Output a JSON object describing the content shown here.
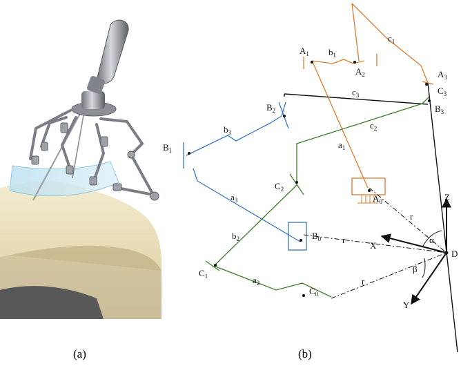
{
  "figure": {
    "panel_a_caption": "(a)",
    "panel_b_caption": "(b)"
  },
  "colors": {
    "chain_a": "#e07a2e",
    "chain_b": "#3a76c4",
    "chain_c": "#3e7d2a",
    "frame": "#111111",
    "accent_ring": "#8fc9e6"
  },
  "labels": {
    "A1": {
      "base": "A",
      "sub": "1"
    },
    "b1": {
      "base": "b",
      "sub": "1"
    },
    "A2": {
      "base": "A",
      "sub": "2"
    },
    "c1": {
      "base": "c",
      "sub": "1"
    },
    "A3": {
      "base": "A",
      "sub": "3"
    },
    "C3": {
      "base": "C",
      "sub": "3"
    },
    "c3": {
      "base": "c",
      "sub": "3"
    },
    "B3": {
      "base": "B",
      "sub": "3"
    },
    "B2": {
      "base": "B",
      "sub": "2"
    },
    "b3": {
      "base": "b",
      "sub": "3"
    },
    "B1": {
      "base": "B",
      "sub": "1"
    },
    "c2": {
      "base": "c",
      "sub": "2"
    },
    "a1": {
      "base": "a",
      "sub": "1"
    },
    "C2": {
      "base": "C",
      "sub": "2"
    },
    "a3": {
      "base": "a",
      "sub": "3"
    },
    "A0": {
      "base": "A",
      "sub": "0"
    },
    "B0": {
      "base": "B",
      "sub": "0"
    },
    "b2": {
      "base": "b",
      "sub": "2"
    },
    "C1": {
      "base": "C",
      "sub": "1"
    },
    "a2": {
      "base": "a",
      "sub": "2"
    },
    "C0": {
      "base": "C",
      "sub": "0"
    }
  },
  "plain_labels": {
    "Z": "Z",
    "X": "X",
    "Y": "Y",
    "D": "D",
    "alpha": "α",
    "beta": "β",
    "r_a": "r",
    "r_b": "r",
    "r_c": "r"
  }
}
